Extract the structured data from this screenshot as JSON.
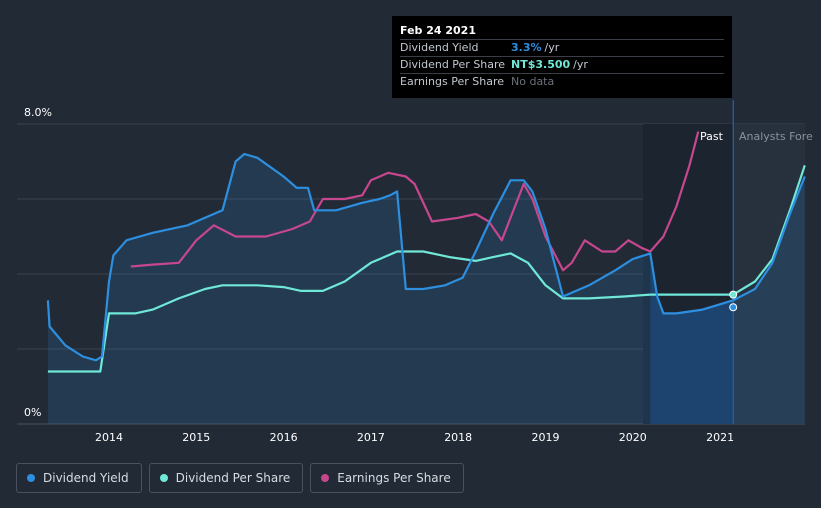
{
  "chart_data": {
    "type": "line",
    "y_axis": {
      "top_label": "8.0%",
      "bottom_label": "0%",
      "range": [
        0,
        8
      ]
    },
    "x_axis": {
      "ticks": [
        "2014",
        "2015",
        "2016",
        "2017",
        "2018",
        "2019",
        "2020",
        "2021"
      ]
    },
    "regions": {
      "past_label": "Past",
      "forecast_label": "Analysts Fore"
    },
    "series": [
      {
        "name": "Dividend Yield",
        "color": "#2d8fe0",
        "points": [
          [
            2013.3,
            3.3
          ],
          [
            2013.32,
            2.6
          ],
          [
            2013.5,
            2.1
          ],
          [
            2013.7,
            1.8
          ],
          [
            2013.85,
            1.7
          ],
          [
            2013.92,
            1.8
          ],
          [
            2014.0,
            3.8
          ],
          [
            2014.05,
            4.5
          ],
          [
            2014.2,
            4.9
          ],
          [
            2014.5,
            5.1
          ],
          [
            2014.9,
            5.3
          ],
          [
            2015.1,
            5.5
          ],
          [
            2015.3,
            5.7
          ],
          [
            2015.45,
            7.0
          ],
          [
            2015.55,
            7.2
          ],
          [
            2015.7,
            7.1
          ],
          [
            2016.0,
            6.6
          ],
          [
            2016.15,
            6.3
          ],
          [
            2016.28,
            6.3
          ],
          [
            2016.35,
            5.7
          ],
          [
            2016.6,
            5.7
          ],
          [
            2016.9,
            5.9
          ],
          [
            2017.1,
            6.0
          ],
          [
            2017.22,
            6.1
          ],
          [
            2017.3,
            6.2
          ],
          [
            2017.4,
            3.6
          ],
          [
            2017.6,
            3.6
          ],
          [
            2017.85,
            3.7
          ],
          [
            2018.05,
            3.9
          ],
          [
            2018.2,
            4.6
          ],
          [
            2018.4,
            5.6
          ],
          [
            2018.6,
            6.5
          ],
          [
            2018.75,
            6.5
          ],
          [
            2018.85,
            6.2
          ],
          [
            2019.0,
            5.2
          ],
          [
            2019.2,
            3.4
          ],
          [
            2019.5,
            3.7
          ],
          [
            2019.8,
            4.1
          ],
          [
            2020.0,
            4.4
          ],
          [
            2020.2,
            4.55
          ],
          [
            2020.28,
            3.4
          ],
          [
            2020.35,
            2.95
          ],
          [
            2020.5,
            2.95
          ],
          [
            2020.8,
            3.05
          ],
          [
            2021.15,
            3.3
          ],
          [
            2021.4,
            3.6
          ],
          [
            2021.6,
            4.3
          ],
          [
            2021.8,
            5.6
          ],
          [
            2021.97,
            6.6
          ]
        ]
      },
      {
        "name": "Dividend Per Share",
        "color": "#6fe8d8",
        "points": [
          [
            2013.3,
            1.4
          ],
          [
            2013.9,
            1.4
          ],
          [
            2014.0,
            2.95
          ],
          [
            2014.3,
            2.95
          ],
          [
            2014.5,
            3.05
          ],
          [
            2014.8,
            3.35
          ],
          [
            2015.1,
            3.6
          ],
          [
            2015.3,
            3.7
          ],
          [
            2015.7,
            3.7
          ],
          [
            2016.0,
            3.65
          ],
          [
            2016.2,
            3.55
          ],
          [
            2016.45,
            3.55
          ],
          [
            2016.7,
            3.8
          ],
          [
            2017.0,
            4.3
          ],
          [
            2017.3,
            4.6
          ],
          [
            2017.6,
            4.6
          ],
          [
            2017.9,
            4.45
          ],
          [
            2018.2,
            4.35
          ],
          [
            2018.4,
            4.45
          ],
          [
            2018.6,
            4.55
          ],
          [
            2018.8,
            4.3
          ],
          [
            2019.0,
            3.7
          ],
          [
            2019.2,
            3.35
          ],
          [
            2019.5,
            3.35
          ],
          [
            2019.9,
            3.4
          ],
          [
            2020.2,
            3.45
          ],
          [
            2021.15,
            3.45
          ],
          [
            2021.4,
            3.8
          ],
          [
            2021.6,
            4.4
          ],
          [
            2021.8,
            5.7
          ],
          [
            2021.97,
            6.9
          ]
        ]
      },
      {
        "name": "Earnings Per Share",
        "color": "#c7478f",
        "points": [
          [
            2014.25,
            4.2
          ],
          [
            2014.5,
            4.25
          ],
          [
            2014.8,
            4.3
          ],
          [
            2015.0,
            4.9
          ],
          [
            2015.2,
            5.3
          ],
          [
            2015.45,
            5.0
          ],
          [
            2015.8,
            5.0
          ],
          [
            2016.1,
            5.2
          ],
          [
            2016.3,
            5.4
          ],
          [
            2016.45,
            6.0
          ],
          [
            2016.7,
            6.0
          ],
          [
            2016.9,
            6.1
          ],
          [
            2017.0,
            6.5
          ],
          [
            2017.2,
            6.7
          ],
          [
            2017.4,
            6.6
          ],
          [
            2017.5,
            6.4
          ],
          [
            2017.7,
            5.4
          ],
          [
            2018.0,
            5.5
          ],
          [
            2018.2,
            5.6
          ],
          [
            2018.35,
            5.4
          ],
          [
            2018.5,
            4.9
          ],
          [
            2018.65,
            5.8
          ],
          [
            2018.75,
            6.4
          ],
          [
            2018.85,
            6.0
          ],
          [
            2019.0,
            5.0
          ],
          [
            2019.2,
            4.1
          ],
          [
            2019.3,
            4.3
          ],
          [
            2019.45,
            4.9
          ],
          [
            2019.65,
            4.6
          ],
          [
            2019.8,
            4.6
          ],
          [
            2019.95,
            4.9
          ],
          [
            2020.1,
            4.7
          ],
          [
            2020.2,
            4.6
          ],
          [
            2020.35,
            5.0
          ],
          [
            2020.5,
            5.8
          ],
          [
            2020.65,
            6.9
          ],
          [
            2020.75,
            7.8
          ]
        ]
      }
    ],
    "highlight": {
      "x": 2021.15
    },
    "tooltip": {
      "date": "Feb 24 2021",
      "rows": [
        {
          "name": "Dividend Yield",
          "value": "3.3%",
          "unit": "/yr",
          "color": "#2d8fe0"
        },
        {
          "name": "Dividend Per Share",
          "value": "NT$3.500",
          "unit": "/yr",
          "color": "#6fe8d8"
        },
        {
          "name": "Earnings Per Share",
          "value": "No data",
          "unit": "",
          "color": "#6b717a"
        }
      ]
    },
    "legend": [
      {
        "label": "Dividend Yield",
        "color": "#2d8fe0"
      },
      {
        "label": "Dividend Per Share",
        "color": "#6fe8d8"
      },
      {
        "label": "Earnings Per Share",
        "color": "#c7478f"
      }
    ]
  }
}
